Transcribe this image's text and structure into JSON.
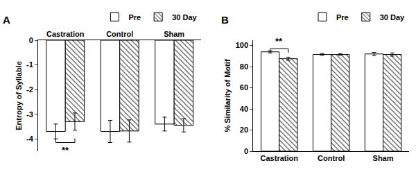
{
  "chart_data": [
    {
      "type": "bar",
      "title": "A",
      "categories": [
        "Castration",
        "Control",
        "Sham"
      ],
      "series": [
        {
          "name": "Pre",
          "color": "#ffffff",
          "marker": "solid",
          "values": [
            -3.7,
            -3.7,
            -3.4
          ],
          "errors": [
            0.3,
            0.45,
            0.28
          ]
        },
        {
          "name": "30 Day",
          "color": "#ffffff",
          "marker": "hatched",
          "values": [
            -3.3,
            -3.68,
            -3.45
          ],
          "errors": [
            0.35,
            0.45,
            0.27
          ]
        }
      ],
      "y_label": "Entropy of Syllable",
      "ylim": [
        -4.5,
        0
      ],
      "yticks": [
        -4,
        -3,
        -2,
        -1,
        0
      ],
      "grid": false,
      "legend": "top",
      "annotations": [
        {
          "text": "**",
          "category": "Castration",
          "y": -4.15
        }
      ]
    },
    {
      "type": "bar",
      "title": "B",
      "categories": [
        "Castration",
        "Control",
        "Sham"
      ],
      "series": [
        {
          "name": "Pre",
          "color": "#ffffff",
          "marker": "solid",
          "values": [
            94,
            91.5,
            92
          ],
          "errors": [
            1,
            0.8,
            1.5
          ]
        },
        {
          "name": "30 Day",
          "color": "#ffffff",
          "marker": "hatched",
          "values": [
            87.5,
            91.5,
            91.5
          ],
          "errors": [
            1.5,
            0.6,
            1.5
          ]
        }
      ],
      "y_label": "% Similarity of Motif",
      "ylim": [
        0,
        105
      ],
      "yticks": [
        0,
        20,
        40,
        60,
        80,
        100
      ],
      "grid": false,
      "legend": "top",
      "annotations": [
        {
          "text": "**",
          "category": "Castration",
          "y": 97
        }
      ]
    }
  ]
}
